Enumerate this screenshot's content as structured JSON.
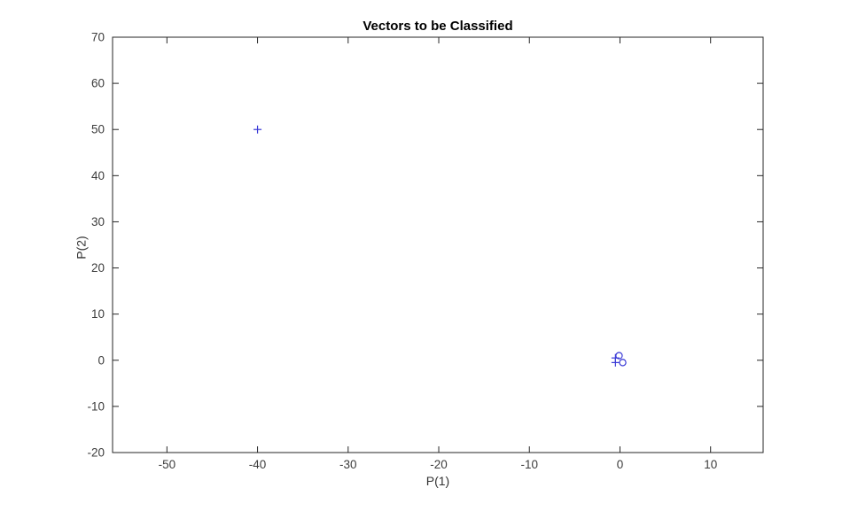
{
  "figure": {
    "background": "#ffffff"
  },
  "chart_data": {
    "type": "scatter",
    "title": "Vectors to be Classified",
    "xlabel": "P(1)",
    "ylabel": "P(2)",
    "xlim": [
      -56,
      15.8
    ],
    "ylim": [
      -20,
      70
    ],
    "xticks": [
      -50,
      -40,
      -30,
      -20,
      -10,
      0,
      10
    ],
    "yticks": [
      -20,
      -10,
      0,
      10,
      20,
      30,
      40,
      50,
      60,
      70
    ],
    "grid": false,
    "legend": "none",
    "box": true,
    "tick_direction": "in",
    "colors": {
      "axis": "#262626",
      "tick_label": "#3c3c3c",
      "marker": "#3939d6",
      "title": "#000000",
      "background": "#ffffff"
    },
    "series": [
      {
        "name": "class-1-plus",
        "marker": "plus",
        "points": [
          [
            -40,
            50
          ],
          [
            -0.5,
            0.5
          ],
          [
            -0.5,
            -0.5
          ]
        ]
      },
      {
        "name": "class-0-circle",
        "marker": "circle",
        "points": [
          [
            -0.1,
            1.0
          ],
          [
            0.3,
            -0.5
          ]
        ]
      }
    ]
  }
}
